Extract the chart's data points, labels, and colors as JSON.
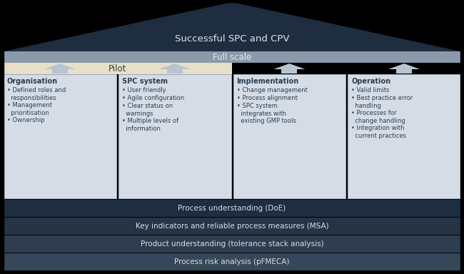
{
  "bg_color": "#000000",
  "fig_bg": "#000000",
  "triangle_color": "#1e2d40",
  "triangle_label": "Successful SPC and CPV",
  "triangle_label_color": "#e0e4e8",
  "full_scale_color": "#8a9aaa",
  "full_scale_label": "Full scale",
  "full_scale_label_color": "#e8ecf0",
  "pilot_color": "#e8dfc8",
  "pilot_label": "Pilot",
  "pilot_label_color": "#2c3e50",
  "box_bg": "#d5dce6",
  "box_border": "#9aaabb",
  "arrow_color": "#b8c4d0",
  "text_color": "#2c3e50",
  "columns": [
    {
      "title": "Organisation",
      "bullets": [
        "• Defined roles and\n  responsibilities",
        "• Management\n  prioritisation",
        "• Ownership"
      ],
      "has_pilot": true
    },
    {
      "title": "SPC system",
      "bullets": [
        "• User friendly",
        "• Agile configuration",
        "• Clear status on\n  warnings",
        "• Multiple levels of\n  information"
      ],
      "has_pilot": true
    },
    {
      "title": "Implementation",
      "bullets": [
        "• Change management",
        "• Process alignment",
        "• SPC system\n  integrates with\n  existing GMP tools"
      ],
      "has_pilot": false
    },
    {
      "title": "Operation",
      "bullets": [
        "• Valid limits",
        "• Best practice error\n  handling",
        "• Processes for\n  change handling",
        "• Integration with\n  current practices"
      ],
      "has_pilot": false
    }
  ],
  "bottom_bars": [
    {
      "label": "Process understanding (DoE)",
      "color": "#1e2d40"
    },
    {
      "label": "Key indicators and reliable process measures (MSA)",
      "color": "#263545"
    },
    {
      "label": "Product understanding (tolerance stack analysis)",
      "color": "#2e3e50"
    },
    {
      "label": "Process risk analysis (pFMECA)",
      "color": "#36475a"
    }
  ],
  "bottom_bar_text_color": "#d8dfe8"
}
